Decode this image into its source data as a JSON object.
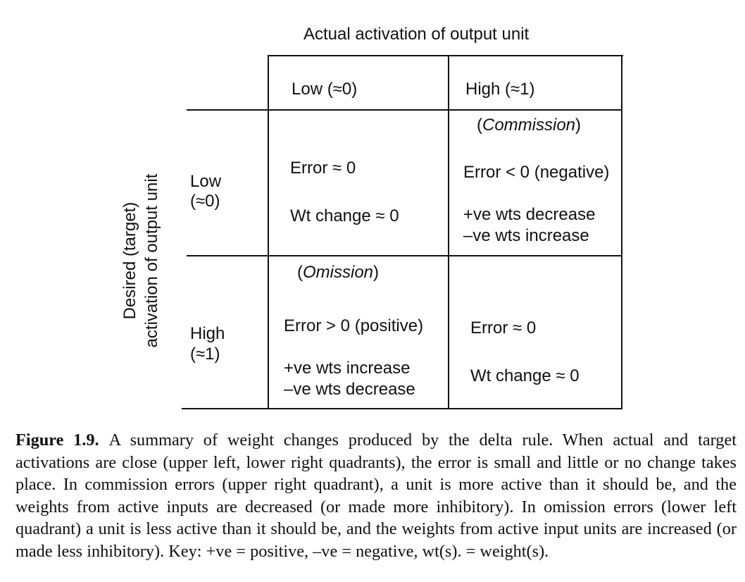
{
  "column_header": "Actual activation of output unit",
  "columns": {
    "low": "Low (≈0)",
    "high": "High (≈1)"
  },
  "row_header": {
    "line1": "Desired (target)",
    "line2": "activation of output unit"
  },
  "rows": {
    "low": {
      "line1": "Low",
      "line2": "(≈0)"
    },
    "high": {
      "line1": "High",
      "line2": "(≈1)"
    }
  },
  "cells": {
    "low_low": {
      "error": "Error ≈ 0",
      "change": "Wt change ≈ 0"
    },
    "low_high": {
      "label": "Commission",
      "error": "Error < 0 (negative)",
      "change1": "+ve wts decrease",
      "change2": "–ve wts increase"
    },
    "high_low": {
      "label": "Omission",
      "error": "Error > 0 (positive)",
      "change1": "+ve wts increase",
      "change2": "–ve wts decrease"
    },
    "high_high": {
      "error": "Error ≈ 0",
      "change": "Wt change ≈ 0"
    }
  },
  "caption": {
    "label": "Figure 1.9.",
    "text": "A summary of weight changes produced by the delta rule. When actual and target activations are close (upper left, lower right quadrants), the error is small and little or no change takes place. In commission errors (upper right quadrant), a unit is more active than it should be, and the weights from active inputs are decreased (or made more inhibitory). In omission errors (lower left quadrant) a unit is less active than it should be, and the weights from active input units are increased (or made less inhibitory). Key: +ve = positive, –ve = negative, wt(s). = weight(s)."
  }
}
